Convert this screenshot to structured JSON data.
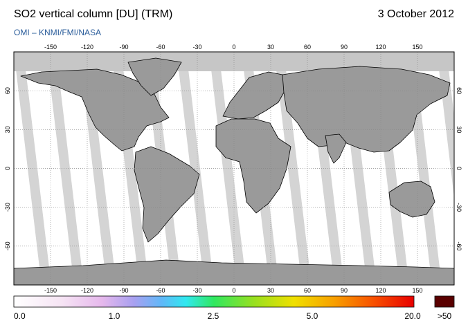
{
  "header": {
    "title": "SO2 vertical column [DU] (TRM)",
    "date": "3 October 2012",
    "credit": "OMI  –  KNMI/FMI/NASA"
  },
  "map": {
    "lon_ticks": [
      "-150",
      "-120",
      "-90",
      "-60",
      "-30",
      "0",
      "30",
      "60",
      "90",
      "120",
      "150"
    ],
    "lat_ticks": [
      "60",
      "30",
      "0",
      "-30",
      "-60"
    ],
    "colors": {
      "land_fill": "#9a9a9a",
      "swath": "#d4d4d4",
      "polar_night": "#c6c6c6",
      "coast": "#000000",
      "grid": "#888888"
    }
  },
  "colorbar": {
    "labels": [
      "0.0",
      "1.0",
      "2.5",
      "5.0",
      "20.0"
    ],
    "overflow_label": ">50",
    "overflow_color": "#5a0000"
  }
}
